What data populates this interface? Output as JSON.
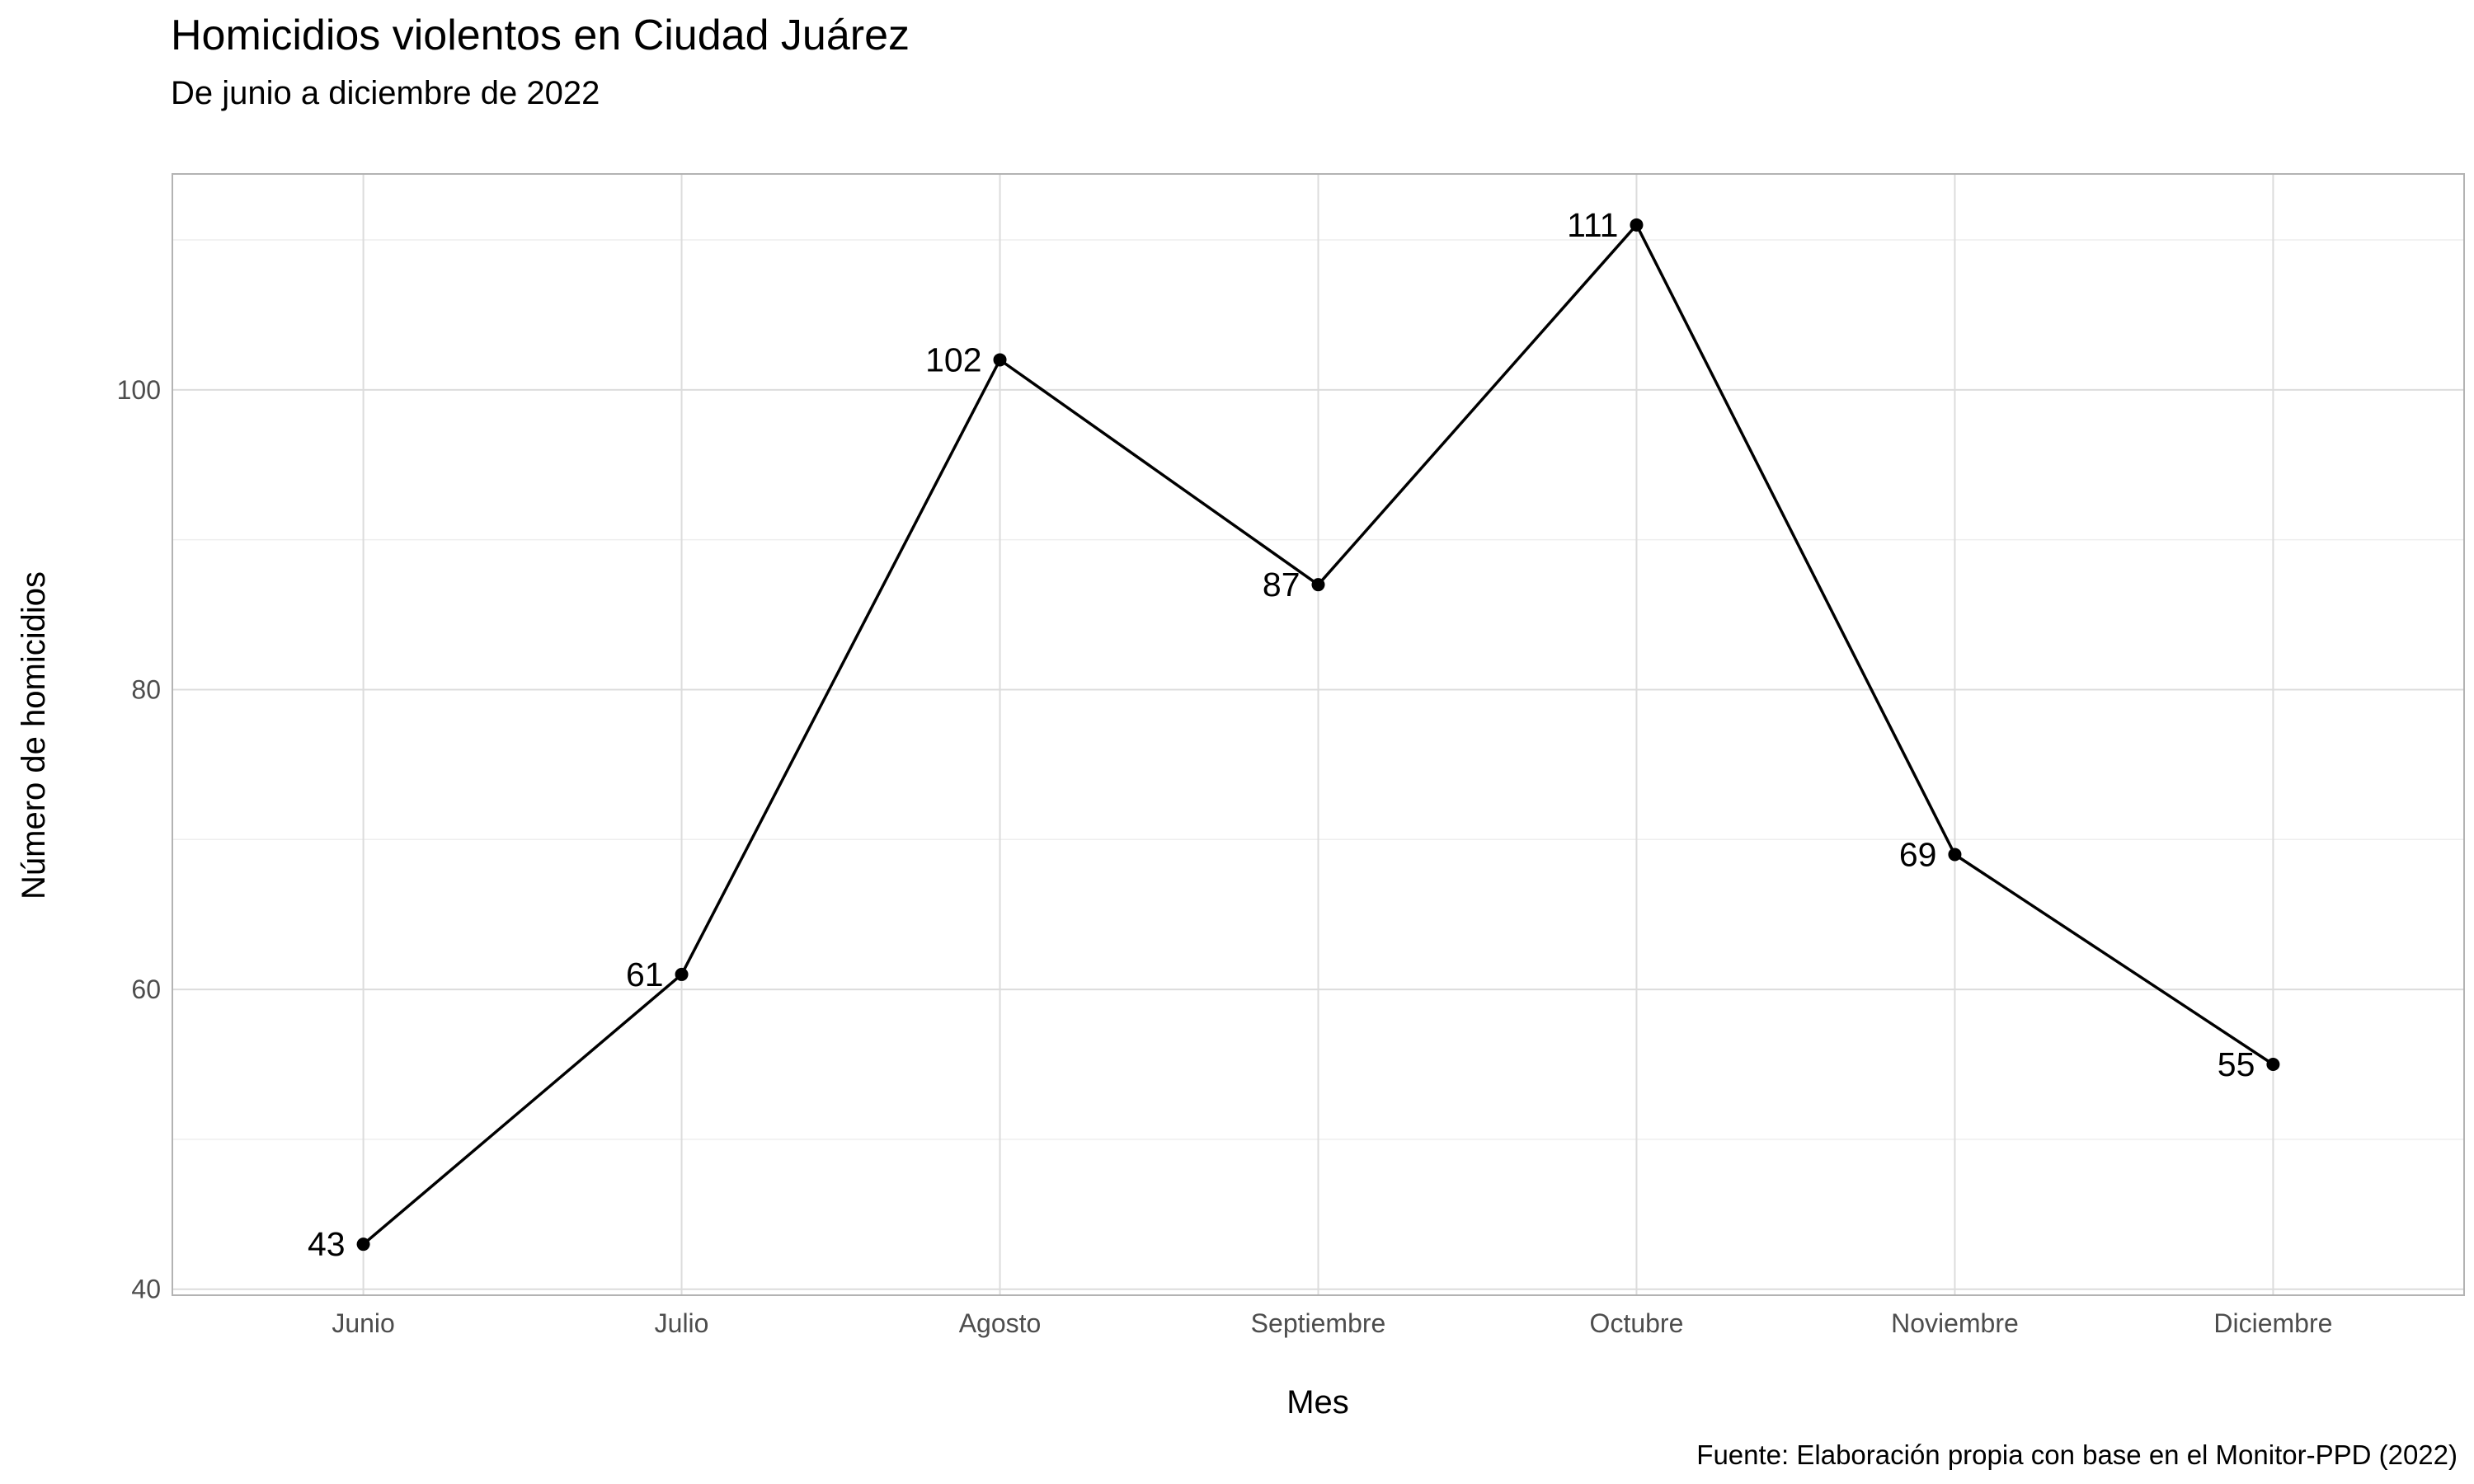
{
  "chart_data": {
    "type": "line",
    "title": "Homicidios violentos en Ciudad Juárez",
    "subtitle": "De junio a diciembre de 2022",
    "xlabel": "Mes",
    "ylabel": "Número de homicidios",
    "caption": "Fuente: Elaboración propia con base en el Monitor-PPD (2022)",
    "categories": [
      "Junio",
      "Julio",
      "Agosto",
      "Septiembre",
      "Octubre",
      "Noviembre",
      "Diciembre"
    ],
    "values": [
      43,
      61,
      102,
      87,
      111,
      69,
      55
    ],
    "data_labels": [
      "43",
      "61",
      "102",
      "87",
      "111",
      "69",
      "55"
    ],
    "ylim": [
      39.6,
      114.4
    ],
    "yticks": [
      40,
      60,
      80,
      100
    ],
    "ytick_labels": [
      "40",
      "60",
      "80",
      "100"
    ],
    "grid": true,
    "colors": {
      "line": "#000000",
      "point": "#000000",
      "grid_major": "#dcdcdc",
      "grid_minor": "#eeeeee",
      "panel_border": "#b3b3b3",
      "tick_text": "#4d4d4d"
    }
  }
}
